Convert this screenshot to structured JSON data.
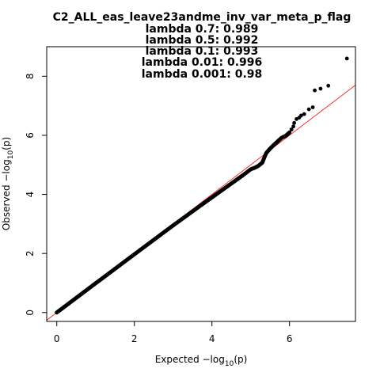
{
  "colors": {
    "points": "#000000",
    "reference_line": "#ff0000",
    "background": "#ffffff"
  },
  "chart_data": {
    "type": "scatter",
    "subtype": "qq-plot",
    "title": "C2_ALL_eas_leave23andme_inv_var_meta_p_flag",
    "lambdas": [
      "lambda 0.7: 0.989",
      "lambda 0.5: 0.992",
      "lambda 0.1: 0.993",
      "lambda 0.01: 0.996",
      "lambda 0.001: 0.98"
    ],
    "xlabel": {
      "prefix": "Expected  −log",
      "subscript": "10",
      "suffix": "(p)"
    },
    "ylabel": {
      "prefix": "Observed  −log",
      "subscript": "10",
      "suffix": "(p)"
    },
    "xlim": [
      -0.26,
      7.7
    ],
    "ylim": [
      -0.3,
      9.0
    ],
    "xticks": [
      0,
      2,
      4,
      6
    ],
    "yticks": [
      0,
      2,
      4,
      6,
      8
    ],
    "reference_line": {
      "intercept": 0,
      "slope": 1
    },
    "bulk_curve": [
      [
        0,
        0
      ],
      [
        1,
        0.99
      ],
      [
        2,
        1.97
      ],
      [
        3,
        2.95
      ],
      [
        4,
        3.9
      ],
      [
        4.5,
        4.37
      ],
      [
        4.8,
        4.65
      ],
      [
        5.0,
        4.85
      ],
      [
        5.1,
        4.9
      ],
      [
        5.2,
        4.97
      ],
      [
        5.3,
        5.08
      ],
      [
        5.35,
        5.25
      ],
      [
        5.4,
        5.4
      ],
      [
        5.5,
        5.55
      ],
      [
        5.6,
        5.68
      ],
      [
        5.7,
        5.8
      ],
      [
        5.8,
        5.92
      ],
      [
        5.9,
        5.98
      ],
      [
        6.0,
        6.1
      ]
    ],
    "tail_points": [
      [
        6.05,
        6.2
      ],
      [
        6.1,
        6.3
      ],
      [
        6.12,
        6.42
      ],
      [
        6.18,
        6.55
      ],
      [
        6.25,
        6.6
      ],
      [
        6.3,
        6.67
      ],
      [
        6.38,
        6.72
      ],
      [
        6.5,
        6.88
      ],
      [
        6.6,
        6.95
      ],
      [
        6.65,
        7.52
      ],
      [
        6.8,
        7.58
      ],
      [
        7.0,
        7.68
      ],
      [
        7.48,
        8.6
      ]
    ]
  }
}
